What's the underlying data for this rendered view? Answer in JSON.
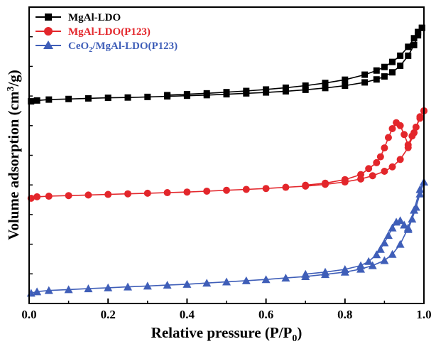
{
  "chart_data": {
    "type": "line",
    "xlabel_main": "Relative pressure (P/P",
    "xlabel_sub": "0",
    "xlabel_tail": ")",
    "ylabel_main": "Volume adsorption (cm",
    "ylabel_sup": "3",
    "ylabel_tail": "/g)",
    "xlim": [
      0,
      1.0
    ],
    "ylim": [
      0,
      100
    ],
    "y_ticks_labeled": false,
    "x_ticks": [
      0.0,
      0.2,
      0.4,
      0.6,
      0.8,
      1.0
    ],
    "x_tick_labels": [
      "0.0",
      "0.2",
      "0.4",
      "0.6",
      "0.8",
      "1.0"
    ],
    "grid": false,
    "legend_position": "top-left",
    "series": [
      {
        "name_main": "MgAl-LDO",
        "name_sub": "",
        "name_tail": "",
        "color": "#000000",
        "marker": "square",
        "adsorption": [
          [
            0.005,
            68.2
          ],
          [
            0.02,
            68.5
          ],
          [
            0.05,
            68.8
          ],
          [
            0.1,
            69.0
          ],
          [
            0.15,
            69.2
          ],
          [
            0.2,
            69.4
          ],
          [
            0.25,
            69.5
          ],
          [
            0.3,
            69.7
          ],
          [
            0.35,
            69.9
          ],
          [
            0.4,
            70.1
          ],
          [
            0.45,
            70.3
          ],
          [
            0.5,
            70.6
          ],
          [
            0.55,
            70.9
          ],
          [
            0.6,
            71.2
          ],
          [
            0.65,
            71.6
          ],
          [
            0.7,
            72.1
          ],
          [
            0.75,
            72.7
          ],
          [
            0.8,
            73.5
          ],
          [
            0.85,
            74.6
          ],
          [
            0.88,
            75.6
          ],
          [
            0.9,
            76.6
          ],
          [
            0.92,
            78.0
          ],
          [
            0.94,
            80.2
          ],
          [
            0.96,
            83.6
          ],
          [
            0.975,
            87.2
          ],
          [
            0.985,
            90.5
          ],
          [
            0.995,
            93.0
          ]
        ],
        "desorption": [
          [
            0.995,
            93.0
          ],
          [
            0.985,
            91.6
          ],
          [
            0.975,
            89.5
          ],
          [
            0.96,
            86.6
          ],
          [
            0.94,
            83.6
          ],
          [
            0.92,
            81.5
          ],
          [
            0.9,
            79.8
          ],
          [
            0.88,
            78.6
          ],
          [
            0.85,
            77.2
          ],
          [
            0.8,
            75.5
          ],
          [
            0.75,
            74.4
          ],
          [
            0.7,
            73.5
          ],
          [
            0.65,
            72.8
          ],
          [
            0.6,
            72.2
          ],
          [
            0.55,
            71.7
          ],
          [
            0.5,
            71.3
          ],
          [
            0.45,
            70.9
          ],
          [
            0.4,
            70.6
          ],
          [
            0.35,
            70.3
          ]
        ]
      },
      {
        "name_main": "MgAl-LDO(P123)",
        "name_sub": "",
        "name_tail": "",
        "color": "#e3262b",
        "marker": "circle",
        "adsorption": [
          [
            0.005,
            35.5
          ],
          [
            0.02,
            36.0
          ],
          [
            0.05,
            36.2
          ],
          [
            0.1,
            36.4
          ],
          [
            0.15,
            36.6
          ],
          [
            0.2,
            36.8
          ],
          [
            0.25,
            37.0
          ],
          [
            0.3,
            37.2
          ],
          [
            0.35,
            37.4
          ],
          [
            0.4,
            37.6
          ],
          [
            0.45,
            37.9
          ],
          [
            0.5,
            38.2
          ],
          [
            0.55,
            38.5
          ],
          [
            0.6,
            38.8
          ],
          [
            0.65,
            39.2
          ],
          [
            0.7,
            39.6
          ],
          [
            0.75,
            40.2
          ],
          [
            0.8,
            41.0
          ],
          [
            0.84,
            42.0
          ],
          [
            0.87,
            43.1
          ],
          [
            0.9,
            44.6
          ],
          [
            0.92,
            46.1
          ],
          [
            0.94,
            48.6
          ],
          [
            0.96,
            52.6
          ],
          [
            0.975,
            57.6
          ],
          [
            0.99,
            63.0
          ],
          [
            1.0,
            65.0
          ]
        ],
        "desorption": [
          [
            1.0,
            65.0
          ],
          [
            0.99,
            62.5
          ],
          [
            0.98,
            59.5
          ],
          [
            0.97,
            56.5
          ],
          [
            0.96,
            53.5
          ],
          [
            0.95,
            57.0
          ],
          [
            0.94,
            60.0
          ],
          [
            0.93,
            61.0
          ],
          [
            0.92,
            59.0
          ],
          [
            0.91,
            56.0
          ],
          [
            0.9,
            52.5
          ],
          [
            0.89,
            49.5
          ],
          [
            0.88,
            47.5
          ],
          [
            0.86,
            45.5
          ],
          [
            0.84,
            43.5
          ],
          [
            0.8,
            41.8
          ],
          [
            0.75,
            40.6
          ],
          [
            0.7,
            39.9
          ]
        ]
      },
      {
        "name_main": "CeO",
        "name_sub": "2",
        "name_tail": "/MgAl-LDO(P123)",
        "color": "#3f5eb8",
        "marker": "triangle",
        "adsorption": [
          [
            0.005,
            3.5
          ],
          [
            0.02,
            4.0
          ],
          [
            0.05,
            4.4
          ],
          [
            0.1,
            4.7
          ],
          [
            0.15,
            5.0
          ],
          [
            0.2,
            5.3
          ],
          [
            0.25,
            5.6
          ],
          [
            0.3,
            5.9
          ],
          [
            0.35,
            6.2
          ],
          [
            0.4,
            6.5
          ],
          [
            0.45,
            6.9
          ],
          [
            0.5,
            7.3
          ],
          [
            0.55,
            7.7
          ],
          [
            0.6,
            8.1
          ],
          [
            0.65,
            8.6
          ],
          [
            0.7,
            9.1
          ],
          [
            0.75,
            9.8
          ],
          [
            0.8,
            10.6
          ],
          [
            0.84,
            11.6
          ],
          [
            0.87,
            12.8
          ],
          [
            0.9,
            14.5
          ],
          [
            0.92,
            16.6
          ],
          [
            0.94,
            20.0
          ],
          [
            0.96,
            25.5
          ],
          [
            0.975,
            31.5
          ],
          [
            0.99,
            38.5
          ],
          [
            1.0,
            41.0
          ]
        ],
        "desorption": [
          [
            1.0,
            41.0
          ],
          [
            0.99,
            37.0
          ],
          [
            0.98,
            32.5
          ],
          [
            0.97,
            28.5
          ],
          [
            0.96,
            25.0
          ],
          [
            0.95,
            26.5
          ],
          [
            0.94,
            28.0
          ],
          [
            0.93,
            27.5
          ],
          [
            0.92,
            25.5
          ],
          [
            0.91,
            23.0
          ],
          [
            0.9,
            20.5
          ],
          [
            0.89,
            18.3
          ],
          [
            0.88,
            16.5
          ],
          [
            0.86,
            14.2
          ],
          [
            0.84,
            12.8
          ],
          [
            0.8,
            11.5
          ],
          [
            0.75,
            10.6
          ],
          [
            0.7,
            9.9
          ]
        ]
      }
    ]
  }
}
